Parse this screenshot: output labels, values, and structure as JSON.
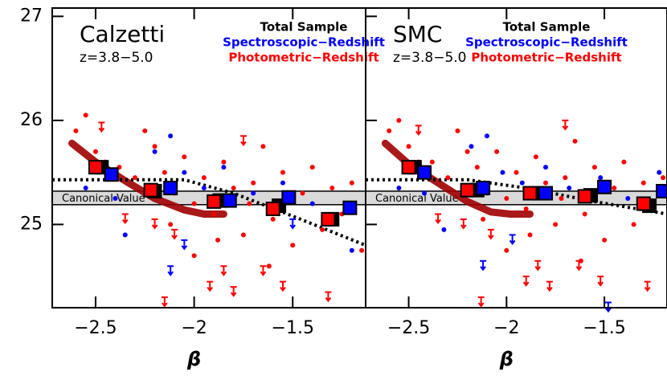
{
  "chart_data": [
    {
      "type": "scatter",
      "title": "Calzetti",
      "subtitle": "z=3.8−5.0",
      "xlabel": "β",
      "annotation": "Canonical Value",
      "xlim": [
        -2.72,
        -1.13
      ],
      "ylim": [
        24.2,
        27.08
      ],
      "xticks": [
        {
          "value": -2.5,
          "label": "−2.5"
        },
        {
          "value": -2,
          "label": "−2"
        },
        {
          "value": -1.5,
          "label": "−1.5"
        }
      ],
      "yticks": [
        25,
        26,
        27
      ],
      "band": [
        25.19,
        25.32
      ],
      "series": [
        {
          "name": "Total Sample",
          "color": "#000000",
          "marker": "square",
          "x": [
            -2.47,
            -2.2,
            -1.87,
            -1.57,
            -1.3
          ],
          "values": [
            25.55,
            25.32,
            25.23,
            25.18,
            25.05
          ]
        },
        {
          "name": "Spectroscopic−Redshift",
          "color": "#0000ff",
          "marker": "dot",
          "x": [
            -2.55,
            -2.4,
            -2.35,
            -2.2,
            -2.12,
            -2.05,
            -1.95,
            -1.85,
            -1.7,
            -1.55,
            -1.4,
            -1.2
          ],
          "values": [
            25.35,
            25.25,
            24.9,
            25.7,
            25.85,
            25.5,
            25.35,
            25.55,
            25.3,
            25.4,
            25.2,
            24.75
          ],
          "bins": {
            "x": [
              -2.42,
              -2.12,
              -1.82,
              -1.52,
              -1.21
            ],
            "values": [
              25.48,
              25.35,
              25.23,
              25.26,
              25.16
            ]
          },
          "limits": {
            "x": [
              -2.12,
              -2.05,
              -1.5
            ],
            "values": [
              24.6,
              24.85,
              25.05
            ]
          }
        },
        {
          "name": "Photometric−Redshift",
          "color": "#ff0000",
          "marker": "dot",
          "x": [
            -2.6,
            -2.55,
            -2.5,
            -2.45,
            -2.38,
            -2.3,
            -2.25,
            -2.2,
            -2.15,
            -2.1,
            -2.05,
            -2.0,
            -1.95,
            -1.9,
            -1.85,
            -1.8,
            -1.75,
            -1.7,
            -1.65,
            -1.6,
            -1.55,
            -1.5,
            -1.45,
            -1.4,
            -1.35,
            -1.3,
            -1.25,
            -1.2,
            -1.15,
            -2.0,
            -1.88,
            -1.62,
            -2.12,
            -1.72
          ],
          "values": [
            25.9,
            26.05,
            25.7,
            25.6,
            25.55,
            25.45,
            25.9,
            25.75,
            25.5,
            25.3,
            25.65,
            25.2,
            25.45,
            25.1,
            25.6,
            25.35,
            24.9,
            25.4,
            25.75,
            25.05,
            25.5,
            24.8,
            25.3,
            25.55,
            24.95,
            25.35,
            25.1,
            25.4,
            24.75,
            24.7,
            24.85,
            24.6,
            25.0,
            25.2
          ],
          "bins": {
            "x": [
              -2.5,
              -2.22,
              -1.9,
              -1.6,
              -1.32
            ],
            "values": [
              25.55,
              25.33,
              25.22,
              25.15,
              25.05
            ]
          },
          "limits": {
            "x": [
              -2.47,
              -2.35,
              -2.2,
              -2.1,
              -1.92,
              -1.8,
              -1.65,
              -1.55,
              -1.75,
              -1.32,
              -2.15,
              -1.85
            ],
            "values": [
              25.98,
              25.1,
              25.05,
              24.95,
              24.45,
              24.4,
              24.6,
              24.45,
              25.85,
              24.35,
              24.3,
              24.6
            ]
          }
        }
      ],
      "lines": [
        {
          "style": "thick",
          "color": "#a00000",
          "x": [
            -2.62,
            -2.5,
            -2.35,
            -2.2,
            -2.05,
            -1.95,
            -1.85
          ],
          "values": [
            25.78,
            25.6,
            25.42,
            25.25,
            25.14,
            25.1,
            25.1
          ]
        },
        {
          "style": "dotted",
          "color": "#000000",
          "x": [
            -2.72,
            -2.05,
            -1.8,
            -1.5,
            -1.13
          ],
          "values": [
            25.43,
            25.43,
            25.3,
            25.08,
            24.8
          ]
        }
      ]
    },
    {
      "type": "scatter",
      "title": "SMC",
      "subtitle": "z=3.8−5.0",
      "xlabel": "β",
      "annotation": "Canonical Value",
      "xlim": [
        -2.72,
        -1.18
      ],
      "ylim": [
        24.2,
        27.08
      ],
      "xticks": [
        {
          "value": -2.5,
          "label": "−2.5"
        },
        {
          "value": -2,
          "label": "−2"
        },
        {
          "value": -1.5,
          "label": "−1.5"
        }
      ],
      "yticks": [
        25,
        26,
        27
      ],
      "band": [
        25.19,
        25.32
      ],
      "series": [
        {
          "name": "Total Sample",
          "color": "#000000",
          "marker": "square",
          "x": [
            -2.47,
            -2.15,
            -1.83,
            -1.57,
            -1.27
          ],
          "values": [
            25.55,
            25.33,
            25.3,
            25.28,
            25.18
          ]
        },
        {
          "name": "Spectroscopic−Redshift",
          "color": "#0000ff",
          "marker": "dot",
          "x": [
            -2.55,
            -2.42,
            -2.32,
            -2.18,
            -2.1,
            -2.02,
            -1.92,
            -1.8,
            -1.68,
            -1.52,
            -1.38,
            -1.22
          ],
          "values": [
            25.35,
            25.3,
            24.95,
            25.75,
            25.85,
            25.5,
            25.4,
            25.55,
            25.35,
            25.45,
            25.25,
            25.5
          ],
          "bins": {
            "x": [
              -2.42,
              -2.12,
              -1.8,
              -1.5,
              -1.2
            ],
            "values": [
              25.5,
              25.35,
              25.3,
              25.36,
              25.32
            ]
          },
          "limits": {
            "x": [
              -2.12,
              -1.97,
              -1.48
            ],
            "values": [
              24.65,
              24.9,
              24.25
            ]
          }
        },
        {
          "name": "Photometric−Redshift",
          "color": "#ff0000",
          "marker": "dot",
          "x": [
            -2.6,
            -2.55,
            -2.5,
            -2.45,
            -2.38,
            -2.3,
            -2.25,
            -2.2,
            -2.15,
            -2.1,
            -2.05,
            -2.0,
            -1.95,
            -1.9,
            -1.85,
            -1.8,
            -1.75,
            -1.7,
            -1.65,
            -1.6,
            -1.55,
            -1.5,
            -1.45,
            -1.4,
            -1.35,
            -1.3,
            -1.25,
            -1.2,
            -2.0,
            -1.88,
            -1.62,
            -2.12,
            -1.72
          ],
          "values": [
            25.9,
            26.0,
            25.75,
            25.6,
            25.6,
            25.45,
            25.9,
            25.7,
            25.55,
            25.3,
            25.7,
            25.25,
            25.5,
            25.15,
            25.65,
            25.4,
            25.0,
            25.45,
            25.8,
            25.1,
            25.55,
            24.85,
            25.35,
            25.6,
            25.0,
            25.4,
            25.15,
            25.45,
            24.75,
            24.9,
            24.65,
            25.05,
            25.25
          ],
          "bins": {
            "x": [
              -2.5,
              -2.2,
              -1.88,
              -1.6,
              -1.3
            ],
            "values": [
              25.55,
              25.33,
              25.3,
              25.27,
              25.2
            ]
          },
          "limits": {
            "x": [
              -2.45,
              -2.35,
              -2.22,
              -2.08,
              -1.9,
              -1.78,
              -1.63,
              -1.52,
              -1.7,
              -1.28,
              -2.13,
              -1.84
            ],
            "values": [
              25.95,
              25.1,
              25.05,
              24.95,
              24.5,
              24.45,
              24.65,
              24.5,
              26.0,
              24.45,
              24.3,
              24.65
            ]
          }
        }
      ],
      "lines": [
        {
          "style": "thick",
          "color": "#a00000",
          "x": [
            -2.62,
            -2.5,
            -2.35,
            -2.2,
            -2.08,
            -1.98,
            -1.88
          ],
          "values": [
            25.78,
            25.58,
            25.4,
            25.22,
            25.12,
            25.1,
            25.1
          ]
        },
        {
          "style": "dotted",
          "color": "#000000",
          "x": [
            -2.72,
            -2.2,
            -1.9,
            -1.55,
            -1.18
          ],
          "values": [
            25.43,
            25.43,
            25.35,
            25.22,
            25.1
          ]
        }
      ]
    }
  ]
}
